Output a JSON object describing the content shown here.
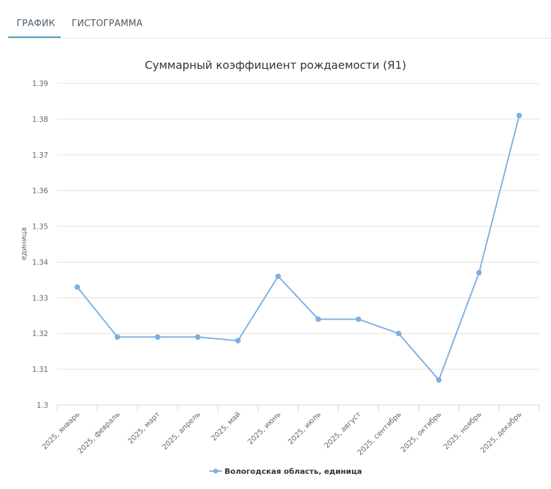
{
  "tabs": [
    {
      "label": "ГРАФИК",
      "active": true
    },
    {
      "label": "ГИСТОГРАММА",
      "active": false
    }
  ],
  "colors": {
    "series": "#7cb0e0",
    "grid": "#e0e0e0",
    "tab_underline": "#4a9bb8"
  },
  "chart_data": {
    "type": "line",
    "title": "Суммарный коэффициент рождаемости (Я1)",
    "xlabel": "",
    "ylabel": "единица",
    "ylim": [
      1.3,
      1.39
    ],
    "yticks": [
      "1.39",
      "1.38",
      "1.37",
      "1.36",
      "1.35",
      "1.34",
      "1.33",
      "1.32",
      "1.31",
      "1.3"
    ],
    "grid": true,
    "legend_position": "bottom",
    "categories": [
      "2025, январь",
      "2025, февраль",
      "2025, март",
      "2025, апрель",
      "2025, май",
      "2025, июнь",
      "2025, июль",
      "2025, август",
      "2025, сентябрь",
      "2025, октябрь",
      "2025, ноябрь",
      "2025, декабрь"
    ],
    "series": [
      {
        "name": "Вологодская область, единица",
        "values": [
          1.333,
          1.319,
          1.319,
          1.319,
          1.318,
          1.336,
          1.324,
          1.324,
          1.32,
          1.307,
          1.337,
          1.381
        ]
      }
    ]
  }
}
